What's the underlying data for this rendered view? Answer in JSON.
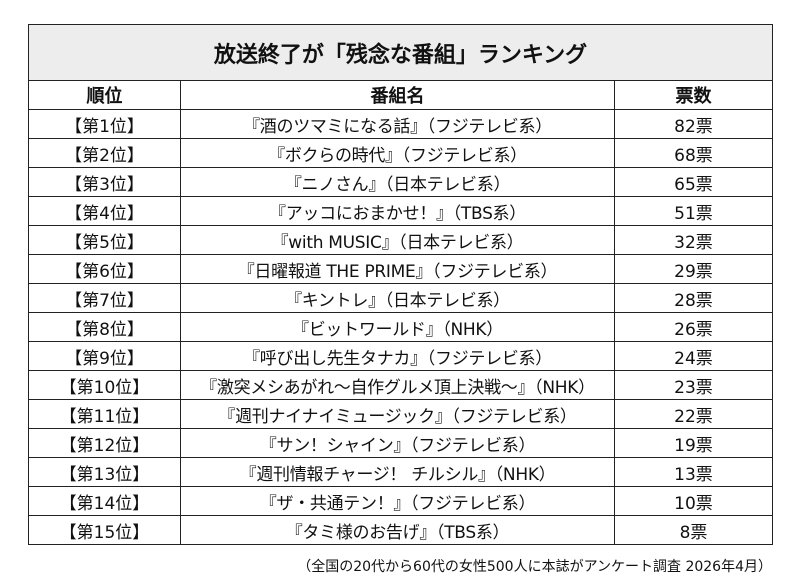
{
  "title": "放送終了が「残念な番組」ランキング",
  "headers": {
    "rank": "順位",
    "program": "番組名",
    "votes": "票数"
  },
  "rows": [
    {
      "rank": "【第1位】",
      "program": "『酒のツマミになる話』（フジテレビ系）",
      "votes": "82票"
    },
    {
      "rank": "【第2位】",
      "program": "『ボクらの時代』（フジテレビ系）",
      "votes": "68票"
    },
    {
      "rank": "【第3位】",
      "program": "『ニノさん』（日本テレビ系）",
      "votes": "65票"
    },
    {
      "rank": "【第4位】",
      "program": "『アッコにおまかせ！』（TBS系）",
      "votes": "51票"
    },
    {
      "rank": "【第5位】",
      "program": "『with MUSIC』（日本テレビ系）",
      "votes": "32票"
    },
    {
      "rank": "【第6位】",
      "program": "『日曜報道 THE PRIME』（フジテレビ系）",
      "votes": "29票"
    },
    {
      "rank": "【第7位】",
      "program": "『キントレ』（日本テレビ系）",
      "votes": "28票"
    },
    {
      "rank": "【第8位】",
      "program": "『ビットワールド』（NHK）",
      "votes": "26票"
    },
    {
      "rank": "【第9位】",
      "program": "『呼び出し先生タナカ』（フジテレビ系）",
      "votes": "24票"
    },
    {
      "rank": "【第10位】",
      "program": "『激突メシあがれ〜自作グルメ頂上決戦〜』（NHK）",
      "votes": "23票"
    },
    {
      "rank": "【第11位】",
      "program": "『週刊ナイナイミュージック』（フジテレビ系）",
      "votes": "22票"
    },
    {
      "rank": "【第12位】",
      "program": "『サン！シャイン』（フジテレビ系）",
      "votes": "19票"
    },
    {
      "rank": "【第13位】",
      "program": "『週刊情報チャージ！ チルシル』（NHK）",
      "votes": "13票"
    },
    {
      "rank": "【第14位】",
      "program": "『ザ・共通テン！』（フジテレビ系）",
      "votes": "10票"
    },
    {
      "rank": "【第15位】",
      "program": "『タミ様のお告げ』（TBS系）",
      "votes": "8票"
    }
  ],
  "footnote": "（全国の20代から60代の女性500人に本誌がアンケート調査 2026年4月）"
}
